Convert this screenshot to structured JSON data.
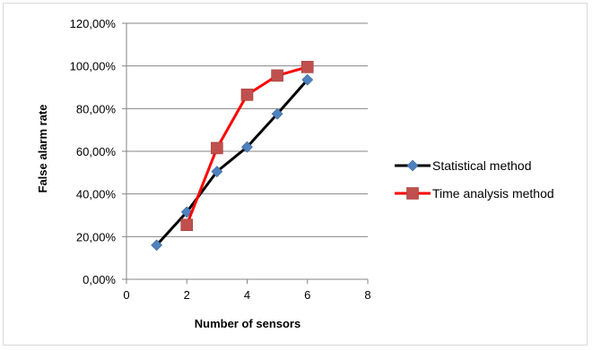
{
  "chart_data": {
    "type": "line",
    "title": "",
    "xlabel": "Number of sensors",
    "ylabel": "False alarm rate",
    "xlim": [
      0,
      8
    ],
    "ylim": [
      0,
      1.2
    ],
    "x_ticks": [
      "0",
      "2",
      "4",
      "6",
      "8"
    ],
    "y_ticks": [
      "0,00%",
      "20,00%",
      "40,00%",
      "60,00%",
      "80,00%",
      "100,00%",
      "120,00%"
    ],
    "grid": "horizontal",
    "legend_position": "right",
    "series": [
      {
        "name": "Statistical method",
        "color": "#000000",
        "marker_color": "#4f81bd",
        "marker": "diamond",
        "x": [
          1,
          2,
          3,
          4,
          5,
          6
        ],
        "y": [
          0.16,
          0.315,
          0.505,
          0.62,
          0.775,
          0.935
        ]
      },
      {
        "name": "Time analysis method",
        "color": "#ff0000",
        "marker_color": "#c0504d",
        "marker": "square",
        "x": [
          2,
          3,
          4,
          5,
          6
        ],
        "y": [
          0.255,
          0.615,
          0.865,
          0.955,
          0.995
        ]
      }
    ]
  }
}
